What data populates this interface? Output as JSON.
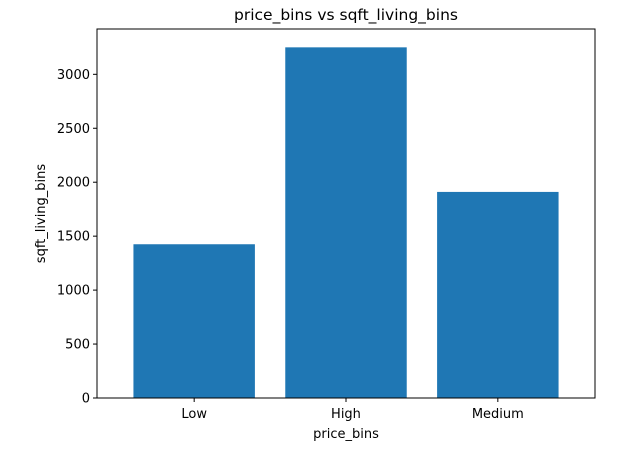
{
  "chart_data": {
    "type": "bar",
    "title": "price_bins vs sqft_living_bins",
    "xlabel": "price_bins",
    "ylabel": "sqft_living_bins",
    "categories": [
      "Low",
      "High",
      "Medium"
    ],
    "values": [
      1425,
      3250,
      1910
    ],
    "ylim": [
      0,
      3420
    ],
    "yticks": [
      0,
      500,
      1000,
      1500,
      2000,
      2500,
      3000
    ],
    "bar_color": "#1f77b4",
    "grid": false,
    "legend": "none"
  }
}
